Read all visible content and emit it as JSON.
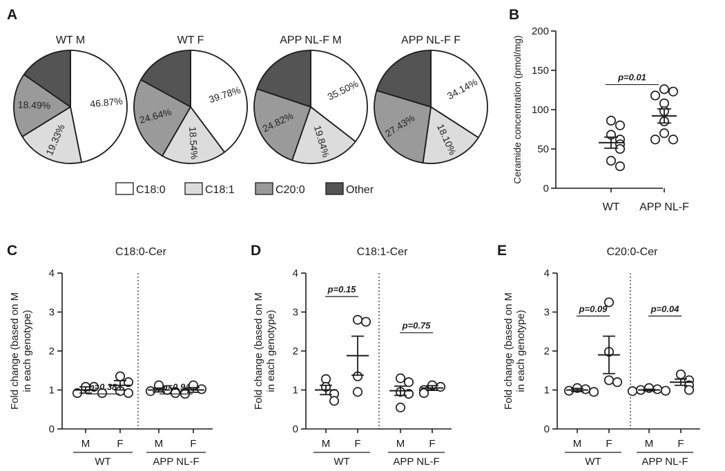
{
  "colors": {
    "C18:0": "#ffffff",
    "C18:1": "#dcdcdc",
    "C20:0": "#9a9a9a",
    "Other": "#545454",
    "ink": "#1a1a1a"
  },
  "chart_data": [
    {
      "panel": "A",
      "type": "pie",
      "legend": [
        "C18:0",
        "C18:1",
        "C20:0",
        "Other"
      ],
      "pies": [
        {
          "title": "WT M",
          "slices": [
            {
              "name": "C18:0",
              "value": 46.87,
              "label": "46.87%"
            },
            {
              "name": "C18:1",
              "value": 19.33,
              "label": "19.33%"
            },
            {
              "name": "C20:0",
              "value": 18.49,
              "label": "18.49%"
            },
            {
              "name": "Other",
              "value": 15.31,
              "label": ""
            }
          ]
        },
        {
          "title": "WT F",
          "slices": [
            {
              "name": "C18:0",
              "value": 39.78,
              "label": "39.78%"
            },
            {
              "name": "C18:1",
              "value": 18.54,
              "label": "18.54%"
            },
            {
              "name": "C20:0",
              "value": 24.64,
              "label": "24.64%"
            },
            {
              "name": "Other",
              "value": 17.04,
              "label": ""
            }
          ]
        },
        {
          "title": "APP NL-F M",
          "slices": [
            {
              "name": "C18:0",
              "value": 35.5,
              "label": "35.50%"
            },
            {
              "name": "C18:1",
              "value": 19.84,
              "label": "19.84%"
            },
            {
              "name": "C20:0",
              "value": 24.82,
              "label": "24.82%"
            },
            {
              "name": "Other",
              "value": 19.84,
              "label": ""
            }
          ]
        },
        {
          "title": "APP NL-F F",
          "slices": [
            {
              "name": "C18:0",
              "value": 34.14,
              "label": "34.14%"
            },
            {
              "name": "C18:1",
              "value": 18.1,
              "label": "18.10%"
            },
            {
              "name": "C20:0",
              "value": 27.43,
              "label": "27.43%"
            },
            {
              "name": "Other",
              "value": 20.33,
              "label": ""
            }
          ]
        }
      ]
    },
    {
      "panel": "B",
      "type": "scatter",
      "ylabel": "Ceramide concentration (pmol/mg)",
      "ylim": [
        0,
        200
      ],
      "yticks": [
        0,
        50,
        100,
        150,
        200
      ],
      "groups": [
        {
          "name": "WT",
          "points": [
            86,
            80,
            68,
            62,
            56,
            50,
            35,
            28
          ],
          "mean": 58,
          "sem": 7
        },
        {
          "name": "APP NL-F",
          "points": [
            126,
            123,
            118,
            108,
            98,
            85,
            70,
            62,
            62
          ],
          "mean": 92,
          "sem": 9
        }
      ],
      "pvalue": "p=0.01"
    },
    {
      "panel": "C",
      "type": "scatter",
      "title": "C18:0-Cer",
      "ylabel_lines": [
        "Fold change (based on M",
        "in each genotype)"
      ],
      "ylim": [
        0,
        4
      ],
      "yticks": [
        0,
        1,
        2,
        3,
        4
      ],
      "genotypes": [
        "WT",
        "APP NL-F"
      ],
      "categories": [
        "M",
        "F",
        "M",
        "F"
      ],
      "groups": [
        {
          "points": [
            1.08,
            1.08,
            0.92,
            0.92
          ],
          "mean": 1.0,
          "sem": 0.08
        },
        {
          "points": [
            1.35,
            1.2,
            0.97,
            0.92
          ],
          "mean": 1.12,
          "sem": 0.12
        },
        {
          "points": [
            1.12,
            1.0,
            0.97,
            0.95,
            0.92
          ],
          "mean": 1.0,
          "sem": 0.05
        },
        {
          "points": [
            1.12,
            1.02,
            0.93,
            0.9
          ],
          "mean": 1.0,
          "sem": 0.06
        }
      ],
      "pvalues": [
        "p=0.38",
        "p=0.94"
      ]
    },
    {
      "panel": "D",
      "type": "scatter",
      "title": "C18:1-Cer",
      "ylabel_lines": [
        "Fold change (based on M",
        "in each genotype)"
      ],
      "ylim": [
        0,
        4
      ],
      "yticks": [
        0,
        1,
        2,
        3,
        4
      ],
      "genotypes": [
        "WT",
        "APP NL-F"
      ],
      "categories": [
        "M",
        "F",
        "M",
        "F"
      ],
      "groups": [
        {
          "points": [
            1.28,
            1.08,
            0.9,
            0.72
          ],
          "mean": 1.0,
          "sem": 0.12
        },
        {
          "points": [
            2.8,
            2.75,
            1.35,
            0.95
          ],
          "mean": 1.88,
          "sem": 0.5
        },
        {
          "points": [
            1.3,
            1.2,
            0.95,
            0.9,
            0.55
          ],
          "mean": 0.98,
          "sem": 0.12
        },
        {
          "points": [
            1.12,
            1.08,
            1.0,
            0.92
          ],
          "mean": 1.05,
          "sem": 0.06
        }
      ],
      "pvalues": [
        "p=0.15",
        "p=0.75"
      ]
    },
    {
      "panel": "E",
      "type": "scatter",
      "title": "C20:0-Cer",
      "ylabel_lines": [
        "Fold change (based on M",
        "in each genotype)"
      ],
      "ylim": [
        0,
        4
      ],
      "yticks": [
        0,
        1,
        2,
        3,
        4
      ],
      "genotypes": [
        "WT",
        "APP NL-F"
      ],
      "categories": [
        "M",
        "F",
        "M",
        "F"
      ],
      "groups": [
        {
          "points": [
            1.05,
            1.02,
            0.98,
            0.95
          ],
          "mean": 1.0,
          "sem": 0.04
        },
        {
          "points": [
            3.25,
            1.98,
            1.25,
            1.2
          ],
          "mean": 1.9,
          "sem": 0.48
        },
        {
          "points": [
            1.05,
            1.02,
            1.0,
            0.98,
            0.97
          ],
          "mean": 1.0,
          "sem": 0.02
        },
        {
          "points": [
            1.4,
            1.25,
            1.12,
            1.0
          ],
          "mean": 1.2,
          "sem": 0.08
        }
      ],
      "pvalues": [
        "p=0.09",
        "p=0.04"
      ]
    }
  ]
}
